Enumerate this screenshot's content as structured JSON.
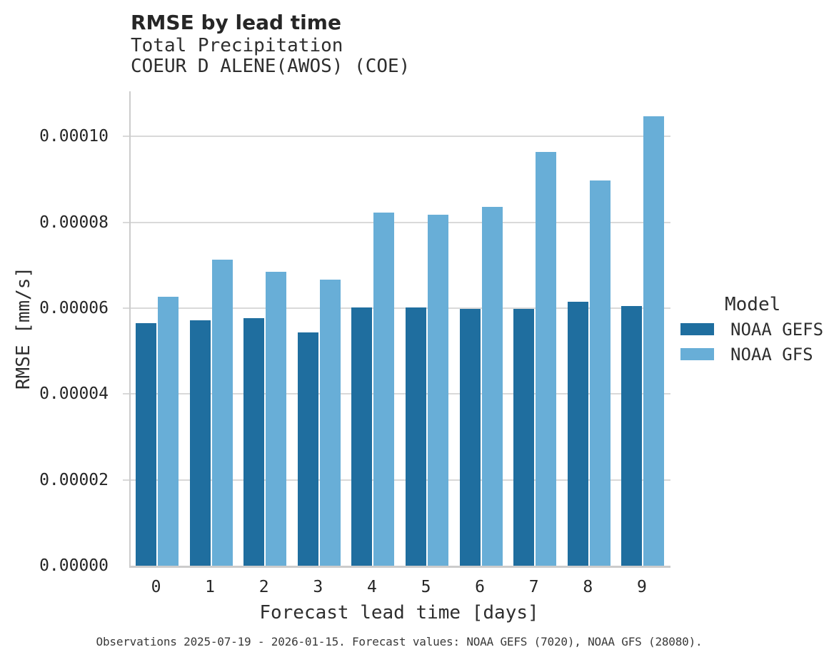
{
  "header": {
    "title": "RMSE by lead time",
    "subtitle1": "Total Precipitation",
    "subtitle2": "COEUR D ALENE(AWOS) (COE)"
  },
  "legend": {
    "title": "Model",
    "items": [
      {
        "label": "NOAA GEFS",
        "color": "#1f6e9f"
      },
      {
        "label": "NOAA GFS",
        "color": "#68aed7"
      }
    ]
  },
  "axes": {
    "xlabel": "Forecast lead time [days]",
    "ylabel": "RMSE [mm/s]"
  },
  "caption": "Observations 2025-07-19 - 2026-01-15. Forecast values: NOAA GEFS (7020), NOAA GFS (28080).",
  "colors": {
    "noaa_gefs": "#1f6e9f",
    "noaa_gfs": "#68aed7",
    "gridline": "#d9d9d9",
    "spine": "#cccccc",
    "text": "#262626"
  },
  "chart_data": {
    "type": "bar",
    "title": "RMSE by lead time",
    "subtitle": [
      "Total Precipitation",
      "COEUR D ALENE(AWOS) (COE)"
    ],
    "categories": [
      "0",
      "1",
      "2",
      "3",
      "4",
      "5",
      "6",
      "7",
      "8",
      "9"
    ],
    "series": [
      {
        "name": "NOAA GEFS",
        "color": "#1f6e9f",
        "values": [
          5.65e-05,
          5.71e-05,
          5.76e-05,
          5.43e-05,
          6.01e-05,
          6.01e-05,
          5.98e-05,
          5.98e-05,
          6.15e-05,
          6.05e-05
        ]
      },
      {
        "name": "NOAA GFS",
        "color": "#68aed7",
        "values": [
          6.27e-05,
          7.13e-05,
          6.84e-05,
          6.66e-05,
          8.22e-05,
          8.18e-05,
          8.36e-05,
          9.63e-05,
          8.97e-05,
          0.0001047
        ]
      }
    ],
    "xlabel": "Forecast lead time [days]",
    "ylabel": "RMSE [mm/s]",
    "ylim": [
      0,
      0.0001105
    ],
    "yticks": [
      {
        "value": 0.0,
        "label": "0.00000"
      },
      {
        "value": 2e-05,
        "label": "0.00002"
      },
      {
        "value": 4e-05,
        "label": "0.00004"
      },
      {
        "value": 6e-05,
        "label": "0.00006"
      },
      {
        "value": 8e-05,
        "label": "0.00008"
      },
      {
        "value": 0.0001,
        "label": "0.00010"
      }
    ],
    "grid": true,
    "legend_title": "Model",
    "legend_position": "right"
  }
}
